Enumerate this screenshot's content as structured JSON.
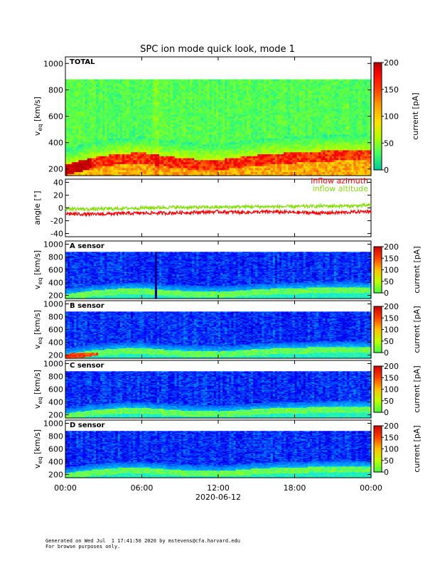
{
  "title": "SPC ion mode quick look, mode 1",
  "footer": {
    "line1": "Generated on Wed Jul  1 17:41:50 2020 by mstevens@cfa.harvard.edu",
    "line2": "For browse purposes only."
  },
  "colors": {
    "colormap": [
      "#00008c",
      "#0000ff",
      "#0080ff",
      "#00e0ff",
      "#40ff80",
      "#b0ff00",
      "#ffe000",
      "#ff8000",
      "#ff0000",
      "#a00000"
    ],
    "azimuth": "#ff0000",
    "altitude": "#80e000"
  },
  "chart_data": [
    {
      "type": "heatmap",
      "panel_label": "TOTAL",
      "ylabel": "v_eq [km/s]",
      "ylabel_main": "v",
      "ylabel_sub": "eq",
      "ylabel_rest": " [km/s]",
      "y_ticks": [
        "200",
        "400",
        "600",
        "800",
        "1000"
      ],
      "y_tick_values": [
        200,
        400,
        600,
        800,
        1000
      ],
      "ylim": [
        150,
        1050
      ],
      "colorbar_label": "current [pA]",
      "colorbar_ticks": [
        "0",
        "50",
        "100",
        "150",
        "200"
      ],
      "colorbar_tick_values": [
        0,
        50,
        100,
        150,
        200
      ],
      "zlim": [
        0,
        200
      ],
      "data_top_kms": 880,
      "core_speed_kms": [
        [
          0,
          190
        ],
        [
          2,
          240
        ],
        [
          4,
          270
        ],
        [
          6,
          280
        ],
        [
          8,
          250
        ],
        [
          10,
          230
        ],
        [
          12,
          225
        ],
        [
          14,
          250
        ],
        [
          16,
          270
        ],
        [
          18,
          280
        ],
        [
          20,
          290
        ],
        [
          22,
          300
        ],
        [
          24,
          300
        ]
      ]
    },
    {
      "type": "line",
      "ylabel": "angle [°]",
      "y_ticks": [
        "-40",
        "-20",
        "0",
        "20",
        "40"
      ],
      "y_tick_values": [
        -40,
        -20,
        0,
        20,
        40
      ],
      "ylim": [
        -45,
        45
      ],
      "series": [
        {
          "name": "inflow azimuth",
          "values_deg": [
            [
              0,
              -9
            ],
            [
              2,
              -10
            ],
            [
              4,
              -9
            ],
            [
              6,
              -8
            ],
            [
              8,
              -8
            ],
            [
              10,
              -7
            ],
            [
              12,
              -6
            ],
            [
              14,
              -7
            ],
            [
              16,
              -6
            ],
            [
              18,
              -7
            ],
            [
              20,
              -8
            ],
            [
              22,
              -7
            ],
            [
              24,
              -5
            ]
          ]
        },
        {
          "name": "inflow altitude",
          "values_deg": [
            [
              0,
              -1
            ],
            [
              2,
              -2
            ],
            [
              4,
              -1
            ],
            [
              6,
              0
            ],
            [
              8,
              1
            ],
            [
              10,
              1
            ],
            [
              12,
              1
            ],
            [
              14,
              2
            ],
            [
              16,
              2
            ],
            [
              18,
              2
            ],
            [
              20,
              3
            ],
            [
              22,
              3
            ],
            [
              24,
              4
            ]
          ]
        }
      ]
    },
    {
      "type": "heatmap",
      "panel_label": "A sensor",
      "ylabel_main": "v",
      "ylabel_sub": "eq",
      "ylabel_rest": " [km/s]",
      "y_ticks": [
        "200",
        "400",
        "600",
        "800",
        "1000"
      ],
      "y_tick_values": [
        200,
        400,
        600,
        800,
        1000
      ],
      "ylim": [
        150,
        1050
      ],
      "colorbar_label": "current [pA]",
      "colorbar_ticks": [
        "0",
        "50",
        "100",
        "150",
        "200"
      ],
      "colorbar_tick_values": [
        0,
        50,
        100,
        150,
        200
      ],
      "zlim": [
        0,
        200
      ]
    },
    {
      "type": "heatmap",
      "panel_label": "B sensor",
      "ylabel_main": "v",
      "ylabel_sub": "eq",
      "ylabel_rest": " [km/s]",
      "y_ticks": [
        "200",
        "400",
        "600",
        "800",
        "1000"
      ],
      "y_tick_values": [
        200,
        400,
        600,
        800,
        1000
      ],
      "ylim": [
        150,
        1050
      ],
      "colorbar_label": "current [pA]",
      "colorbar_ticks": [
        "0",
        "50",
        "100",
        "150",
        "200"
      ],
      "colorbar_tick_values": [
        0,
        50,
        100,
        150,
        200
      ],
      "zlim": [
        0,
        200
      ]
    },
    {
      "type": "heatmap",
      "panel_label": "C sensor",
      "ylabel_main": "v",
      "ylabel_sub": "eq",
      "ylabel_rest": " [km/s]",
      "y_ticks": [
        "200",
        "400",
        "600",
        "800",
        "1000"
      ],
      "y_tick_values": [
        200,
        400,
        600,
        800,
        1000
      ],
      "ylim": [
        150,
        1050
      ],
      "colorbar_label": "current [pA]",
      "colorbar_ticks": [
        "0",
        "50",
        "100",
        "150",
        "200"
      ],
      "colorbar_tick_values": [
        0,
        50,
        100,
        150,
        200
      ],
      "zlim": [
        0,
        200
      ]
    },
    {
      "type": "heatmap",
      "panel_label": "D sensor",
      "ylabel_main": "v",
      "ylabel_sub": "eq",
      "ylabel_rest": " [km/s]",
      "y_ticks": [
        "200",
        "400",
        "600",
        "800",
        "1000"
      ],
      "y_tick_values": [
        200,
        400,
        600,
        800,
        1000
      ],
      "ylim": [
        150,
        1050
      ],
      "colorbar_label": "current [pA]",
      "colorbar_ticks": [
        "0",
        "50",
        "100",
        "150",
        "200"
      ],
      "colorbar_tick_values": [
        0,
        50,
        100,
        150,
        200
      ],
      "zlim": [
        0,
        200
      ]
    }
  ],
  "x_axis": {
    "ticks": [
      "00:00",
      "06:00",
      "12:00",
      "18:00",
      "00:00"
    ],
    "tick_hours": [
      0,
      6,
      12,
      18,
      24
    ],
    "date_label": "2020-06-12",
    "xlim_hours": [
      0,
      24
    ]
  }
}
